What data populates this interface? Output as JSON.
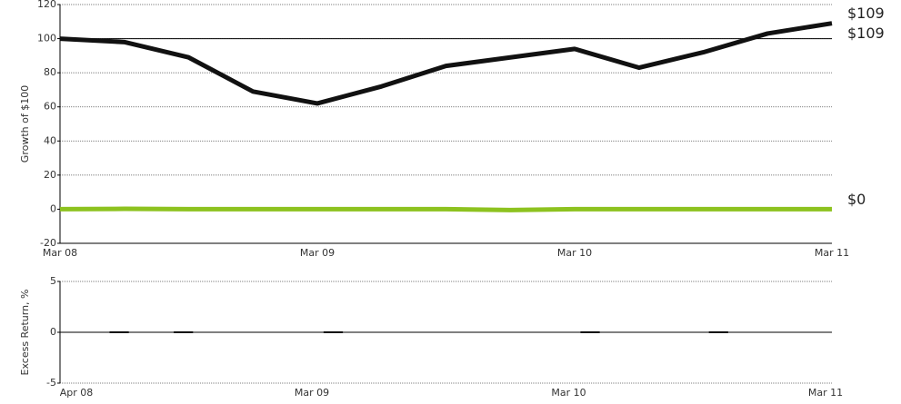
{
  "chart_data": [
    {
      "type": "line",
      "ylabel": "Growth of $100",
      "categories": [
        "Mar 08",
        null,
        null,
        null,
        "Mar 09",
        null,
        null,
        null,
        "Mar 10",
        null,
        null,
        null,
        "Mar 11"
      ],
      "series": [
        {
          "color": "#111111",
          "values": [
            100,
            98,
            89,
            69,
            62,
            72,
            84,
            89,
            94,
            83,
            92,
            103,
            109
          ]
        },
        {
          "color": "#8dc21f",
          "values": [
            0,
            0.2,
            0,
            0,
            0,
            0,
            0,
            -0.5,
            0,
            0,
            0,
            0,
            0
          ]
        }
      ],
      "reference_line": 100,
      "annotations": [
        "$109",
        "$109",
        "$0"
      ],
      "ylim": [
        -20,
        120
      ],
      "yticks": [
        -20,
        0,
        20,
        40,
        60,
        80,
        100,
        120
      ],
      "grid": true
    },
    {
      "type": "bar",
      "ylabel": "Excess Return, %",
      "categories": [
        "Apr 08",
        null,
        null,
        null,
        null,
        null,
        null,
        null,
        null,
        null,
        null,
        "Mar 09",
        null,
        null,
        null,
        null,
        null,
        null,
        null,
        null,
        null,
        null,
        null,
        "Mar 10",
        null,
        null,
        null,
        null,
        null,
        null,
        null,
        null,
        null,
        null,
        null,
        "Mar 11"
      ],
      "color": "#111111",
      "values": [
        0,
        0,
        0.05,
        0,
        0,
        0.05,
        0,
        0,
        0,
        0,
        0,
        0,
        0.05,
        0,
        0,
        0,
        0,
        0,
        0,
        0,
        0,
        0,
        0,
        0,
        0.05,
        0,
        0,
        0,
        0,
        0,
        0.05,
        0,
        0,
        0,
        0,
        0
      ],
      "ylim": [
        -5,
        5
      ],
      "yticks": [
        -5,
        0,
        5
      ],
      "grid": true
    }
  ]
}
